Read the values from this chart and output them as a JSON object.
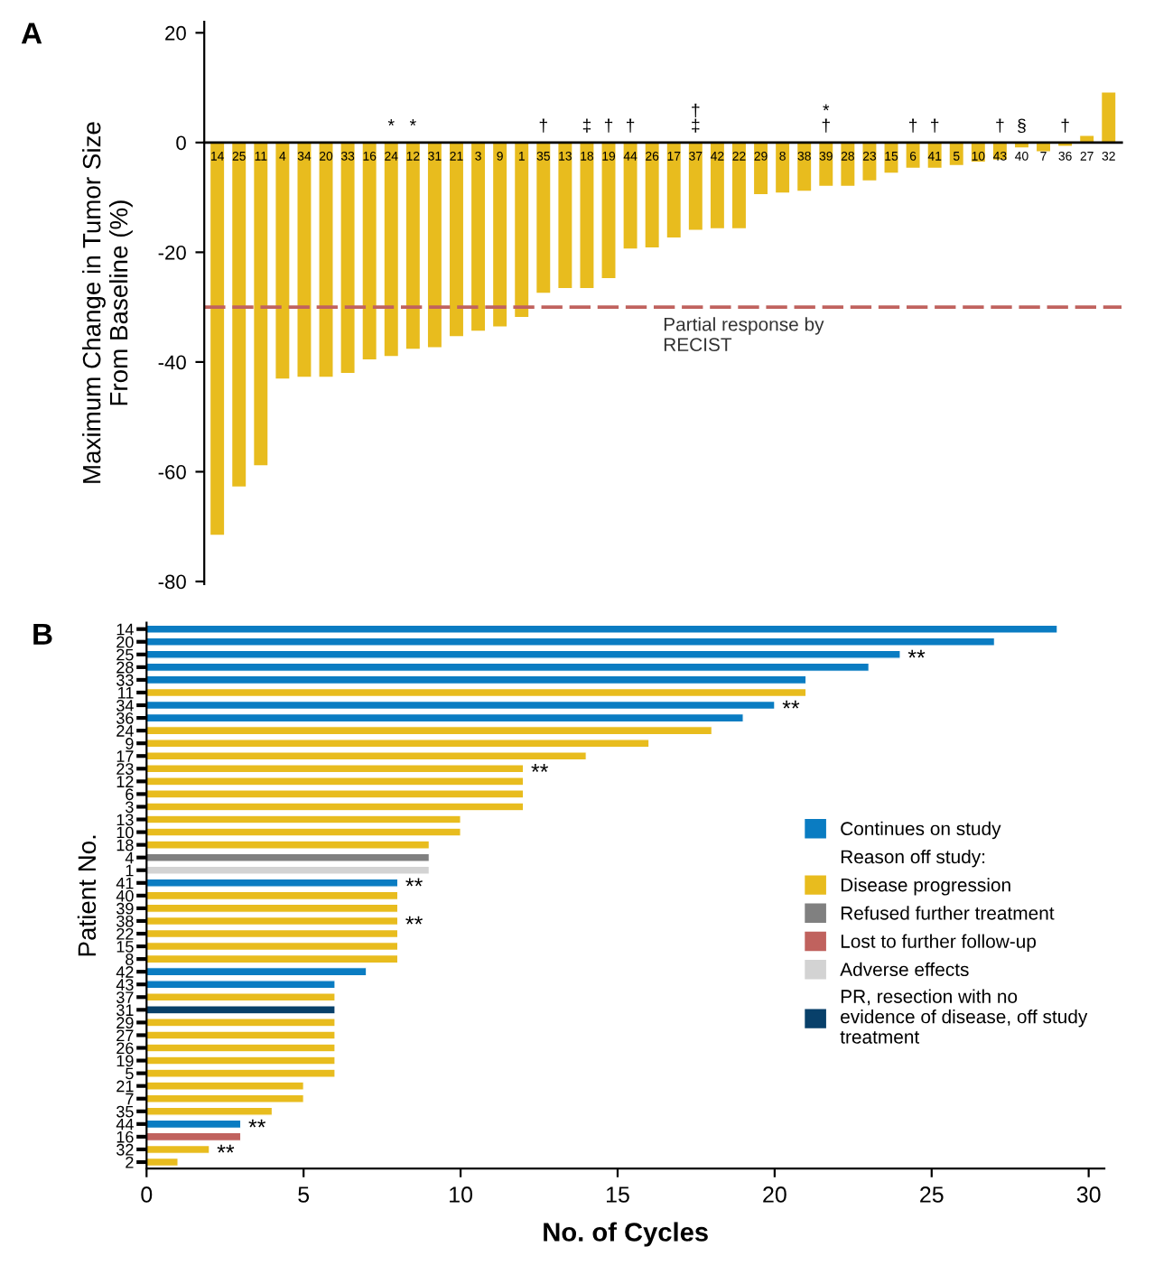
{
  "chart_data": [
    {
      "type": "bar",
      "title": "A",
      "ylabel": "Maximum Change in Tumor Size\nFrom Baseline (%)",
      "categories": [
        "14",
        "25",
        "11",
        "4",
        "34",
        "20",
        "33",
        "16",
        "24",
        "12",
        "31",
        "21",
        "3",
        "9",
        "1",
        "35",
        "13",
        "18",
        "19",
        "44",
        "26",
        "17",
        "37",
        "42",
        "22",
        "29",
        "8",
        "38",
        "39",
        "28",
        "23",
        "15",
        "6",
        "41",
        "5",
        "10",
        "43",
        "40",
        "7",
        "36",
        "27",
        "32"
      ],
      "values": [
        -71.5,
        -62.7,
        -58.8,
        -43,
        -42.7,
        -42.7,
        -42,
        -39.5,
        -38.9,
        -37.6,
        -37.3,
        -35.3,
        -34.3,
        -33.5,
        -31.8,
        -27.4,
        -26.5,
        -26.5,
        -24.7,
        -19.3,
        -19.1,
        -17.3,
        -15.9,
        -15.6,
        -15.6,
        -9.4,
        -9.1,
        -8.8,
        -7.9,
        -7.9,
        -6.9,
        -5.5,
        -4.6,
        -4.6,
        -4.1,
        -3.5,
        -3.1,
        -0.9,
        -1.6,
        -0.6,
        1.2,
        9.1
      ],
      "color": "#e8bc1e",
      "ylim": [
        -80.5,
        22
      ],
      "yticks": [
        20,
        0,
        -20,
        -40,
        -60,
        -80
      ],
      "ref_lines": [
        {
          "axis": "y",
          "value": -30,
          "label": "Partial response by\nRECIST",
          "color": "#c0625e",
          "line_style": "dashed"
        }
      ],
      "annotations": [
        {
          "text": "*",
          "x": "24",
          "y": 0
        },
        {
          "text": "*",
          "x": "12",
          "y": 0
        },
        {
          "text": "†",
          "x": "35",
          "y": 0
        },
        {
          "text": "‡",
          "x": "18",
          "y": 0
        },
        {
          "text": "†",
          "x": "19",
          "y": 0
        },
        {
          "text": "†",
          "x": "44",
          "y": 0
        },
        {
          "text": "†\n‡",
          "x": "37",
          "y": 0
        },
        {
          "text": "*\n†",
          "x": "39",
          "y": 0
        },
        {
          "text": "†",
          "x": "6",
          "y": 0
        },
        {
          "text": "†",
          "x": "41",
          "y": 0
        },
        {
          "text": "†",
          "x": "43",
          "y": 0
        },
        {
          "text": "§",
          "x": "40",
          "y": 0
        },
        {
          "text": "†",
          "x": "36",
          "y": 0
        }
      ],
      "grid": false,
      "legend": false
    },
    {
      "type": "bar",
      "orientation": "horizontal",
      "title": "B",
      "xlabel": "No. of Cycles",
      "ylabel": "Patient No.",
      "categories": [
        "14",
        "20",
        "25",
        "28",
        "33",
        "11",
        "34",
        "36",
        "24",
        "9",
        "17",
        "23",
        "12",
        "6",
        "3",
        "13",
        "10",
        "18",
        "4",
        "1",
        "41",
        "40",
        "39",
        "38",
        "22",
        "15",
        "8",
        "42",
        "43",
        "37",
        "31",
        "29",
        "27",
        "26",
        "19",
        "5",
        "21",
        "7",
        "35",
        "44",
        "16",
        "32",
        "2"
      ],
      "series": [
        {
          "name": "Continues on study",
          "color": "#0a7cc2",
          "values": [
            29,
            27,
            24,
            23,
            21,
            null,
            20,
            19,
            null,
            null,
            null,
            null,
            null,
            null,
            null,
            null,
            null,
            null,
            null,
            null,
            8,
            null,
            null,
            null,
            null,
            null,
            null,
            7,
            6,
            null,
            null,
            null,
            null,
            null,
            null,
            null,
            null,
            null,
            null,
            3,
            null,
            null,
            null
          ]
        },
        {
          "name": "Disease progression",
          "color": "#e8bc1e",
          "values": [
            null,
            null,
            null,
            null,
            null,
            21,
            null,
            null,
            18,
            16,
            14,
            12,
            12,
            12,
            12,
            10,
            10,
            9,
            null,
            null,
            null,
            8,
            8,
            8,
            8,
            8,
            8,
            null,
            null,
            6,
            null,
            6,
            6,
            6,
            6,
            6,
            5,
            5,
            4,
            null,
            null,
            2,
            1
          ]
        },
        {
          "name": "Refused further treatment",
          "color": "#808080",
          "values": [
            null,
            null,
            null,
            null,
            null,
            null,
            null,
            null,
            null,
            null,
            null,
            null,
            null,
            null,
            null,
            null,
            null,
            null,
            9,
            null,
            null,
            null,
            null,
            null,
            null,
            null,
            null,
            null,
            null,
            null,
            null,
            null,
            null,
            null,
            null,
            null,
            null,
            null,
            null,
            null,
            null,
            null,
            null
          ]
        },
        {
          "name": "Lost to further follow-up",
          "color": "#c0625e",
          "values": [
            null,
            null,
            null,
            null,
            null,
            null,
            null,
            null,
            null,
            null,
            null,
            null,
            null,
            null,
            null,
            null,
            null,
            null,
            null,
            null,
            null,
            null,
            null,
            null,
            null,
            null,
            null,
            null,
            null,
            null,
            null,
            null,
            null,
            null,
            null,
            null,
            null,
            null,
            null,
            null,
            3,
            null,
            null
          ]
        },
        {
          "name": "Adverse effects",
          "color": "#d3d3d3",
          "values": [
            null,
            null,
            null,
            null,
            null,
            null,
            null,
            null,
            null,
            null,
            null,
            null,
            null,
            null,
            null,
            null,
            null,
            null,
            null,
            9,
            null,
            null,
            null,
            null,
            null,
            null,
            null,
            null,
            null,
            null,
            null,
            null,
            null,
            null,
            null,
            null,
            null,
            null,
            null,
            null,
            null,
            null,
            null
          ]
        },
        {
          "name": "PR, resection with no\nevidence of disease, off study\ntreatment",
          "color": "#08406a",
          "values": [
            null,
            null,
            null,
            null,
            null,
            null,
            null,
            null,
            null,
            null,
            null,
            null,
            null,
            null,
            null,
            null,
            null,
            null,
            null,
            null,
            null,
            null,
            null,
            null,
            null,
            null,
            null,
            null,
            null,
            null,
            6,
            null,
            null,
            null,
            null,
            null,
            null,
            null,
            null,
            null,
            null,
            null,
            null
          ]
        }
      ],
      "xlim": [
        0,
        30.5
      ],
      "xticks": [
        0,
        5,
        10,
        15,
        20,
        25,
        30
      ],
      "annotations": [
        "Reason off study:",
        {
          "text": "**",
          "x": 24,
          "y": "25"
        },
        {
          "text": "**",
          "x": 20,
          "y": "34"
        },
        {
          "text": "**",
          "x": 12,
          "y": "23"
        },
        {
          "text": "**",
          "x": 8,
          "y": "41"
        },
        {
          "text": "**",
          "x": 8,
          "y": "38"
        },
        {
          "text": "**",
          "x": 3,
          "y": "44"
        },
        {
          "text": "**",
          "x": 2,
          "y": "32"
        }
      ],
      "grid": false,
      "legend": "right"
    }
  ]
}
